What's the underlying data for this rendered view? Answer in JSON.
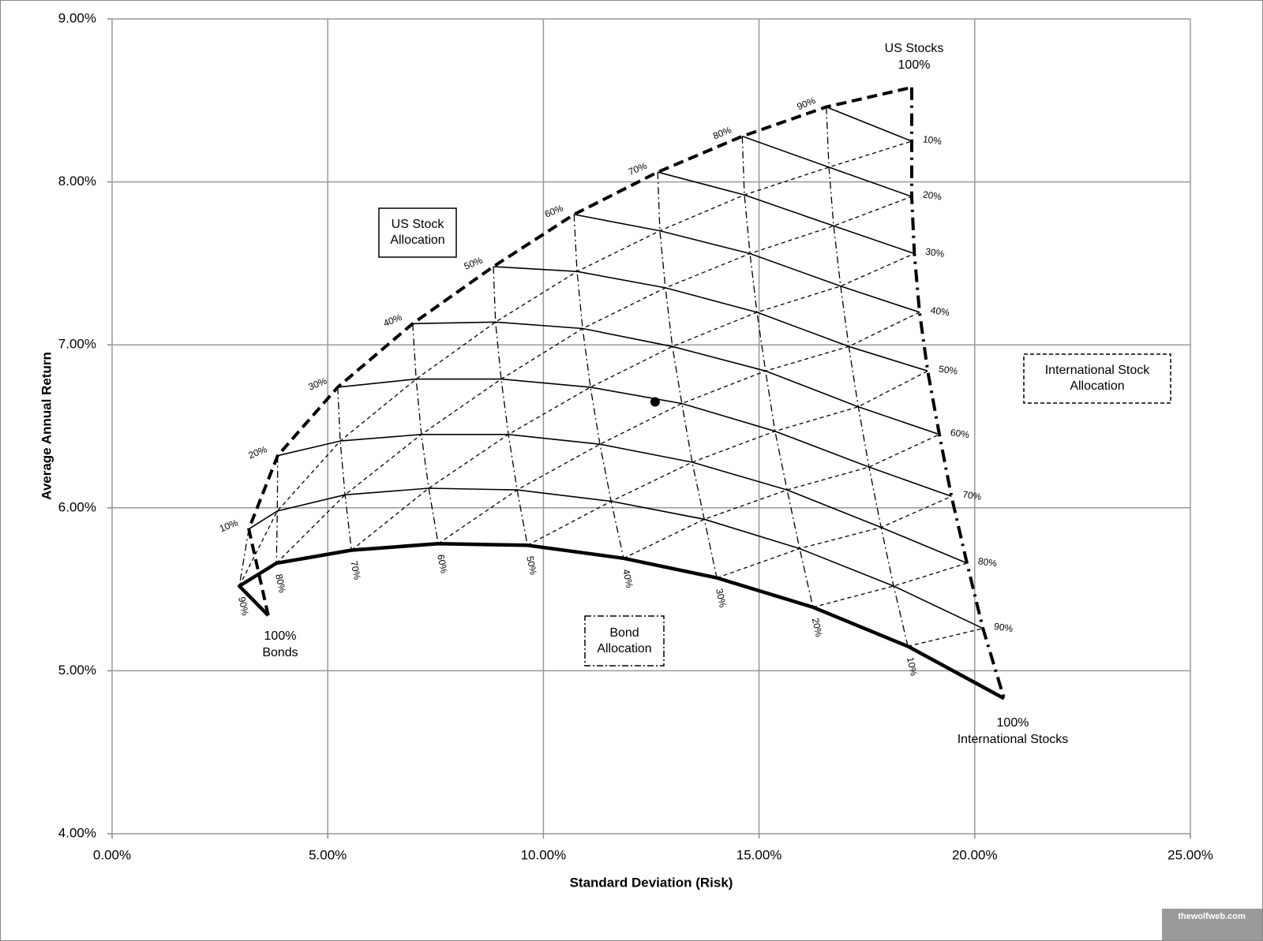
{
  "chart_data": {
    "type": "ternary-frontier",
    "x_label": "Standard Deviation (Risk)",
    "y_label": "Average Annual Return",
    "xlim": [
      0,
      25
    ],
    "ylim": [
      4,
      9
    ],
    "xticks": [
      {
        "value": 0,
        "label": "0.00%"
      },
      {
        "value": 5,
        "label": "5.00%"
      },
      {
        "value": 10,
        "label": "10.00%"
      },
      {
        "value": 15,
        "label": "15.00%"
      },
      {
        "value": 20,
        "label": "20.00%"
      },
      {
        "value": 25,
        "label": "25.00%"
      }
    ],
    "yticks": [
      {
        "value": 4,
        "label": "4.00%"
      },
      {
        "value": 5,
        "label": "5.00%"
      },
      {
        "value": 6,
        "label": "6.00%"
      },
      {
        "value": 7,
        "label": "7.00%"
      },
      {
        "value": 8,
        "label": "8.00%"
      },
      {
        "value": 9,
        "label": "9.00%"
      }
    ],
    "grid": true,
    "color": "#000000",
    "grid_x": [
      [
        3.62,
        2.95,
        3.81,
        5.55,
        7.56,
        9.63,
        11.86,
        14.02,
        16.25,
        18.45,
        20.68
      ],
      [
        3.17,
        3.83,
        5.4,
        7.34,
        9.39,
        11.57,
        13.73,
        15.94,
        18.12,
        20.19
      ],
      [
        3.84,
        5.29,
        7.17,
        9.19,
        11.31,
        13.45,
        15.65,
        17.83,
        19.82
      ],
      [
        5.23,
        7.05,
        9.02,
        11.09,
        13.21,
        15.37,
        17.55,
        19.46
      ],
      [
        6.97,
        8.89,
        10.91,
        12.99,
        15.15,
        17.3,
        19.18
      ],
      [
        8.84,
        10.78,
        12.83,
        14.95,
        17.08,
        18.91
      ],
      [
        10.71,
        12.7,
        14.79,
        16.89,
        18.72
      ],
      [
        12.65,
        14.66,
        16.73,
        18.6
      ],
      [
        14.61,
        16.62,
        18.54
      ],
      [
        16.56,
        18.54
      ],
      [
        18.54
      ]
    ],
    "grid_y": [
      [
        5.34,
        5.52,
        5.66,
        5.74,
        5.78,
        5.77,
        5.69,
        5.57,
        5.39,
        5.15,
        4.83
      ],
      [
        5.87,
        5.98,
        6.08,
        6.12,
        6.11,
        6.04,
        5.93,
        5.75,
        5.52,
        5.26
      ],
      [
        6.32,
        6.41,
        6.45,
        6.45,
        6.39,
        6.28,
        6.11,
        5.88,
        5.66
      ],
      [
        6.74,
        6.79,
        6.79,
        6.74,
        6.64,
        6.47,
        6.25,
        6.07
      ],
      [
        7.13,
        7.14,
        7.1,
        6.99,
        6.84,
        6.62,
        6.45
      ],
      [
        7.48,
        7.45,
        7.35,
        7.2,
        6.99,
        6.84
      ],
      [
        7.8,
        7.7,
        7.56,
        7.36,
        7.2
      ],
      [
        8.06,
        7.92,
        7.73,
        7.56
      ],
      [
        8.28,
        8.09,
        7.91
      ],
      [
        8.46,
        8.25
      ],
      [
        8.58
      ]
    ],
    "us_labels": [
      "10%",
      "20%",
      "30%",
      "40%",
      "50%",
      "60%",
      "70%",
      "80%",
      "90%"
    ],
    "intl_labels": [
      "10%",
      "20%",
      "30%",
      "40%",
      "50%",
      "60%",
      "70%",
      "80%",
      "90%"
    ],
    "bond_labels": [
      "10%",
      "20%",
      "30%",
      "40%",
      "50%",
      "60%",
      "70%",
      "80%",
      "90%"
    ],
    "marker": {
      "x": 12.59,
      "y": 6.65
    },
    "us_corner": [
      "US Stocks",
      "100%"
    ],
    "bond_corner": [
      "100%",
      "Bonds"
    ],
    "intl_corner": [
      "100%",
      "International Stocks"
    ],
    "us_box": [
      "US Stock",
      "Allocation"
    ],
    "intl_box": [
      "International Stock",
      "Allocation"
    ],
    "bond_box": [
      "Bond",
      "Allocation"
    ],
    "watermark": "thewolfweb.com"
  }
}
